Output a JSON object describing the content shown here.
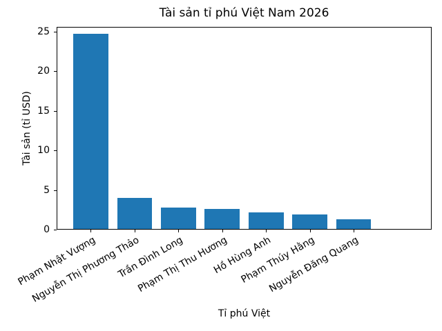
{
  "chart_data": {
    "type": "bar",
    "title": "Tài sản tỉ phú Việt Nam 2026",
    "xlabel": "Tỉ phú Việt",
    "ylabel": "Tài sản (tỉ USD)",
    "categories": [
      "Phạm Nhật Vượng",
      "Nguyễn Thị Phương Thảo",
      "Trần Đình Long",
      "Phạm Thị Thu Hương",
      "Hồ Hùng Anh",
      "Phạm Thúy Hằng",
      "Nguyễn Đăng Quang"
    ],
    "values": [
      24.6,
      3.9,
      2.7,
      2.5,
      2.1,
      1.8,
      1.2
    ],
    "yticks": [
      0,
      5,
      10,
      15,
      20,
      25
    ],
    "ylim": [
      0,
      25.6
    ],
    "grid": false,
    "legend": null,
    "bar_color": "#1f77b4",
    "axis_color": "#000000",
    "background_color": "#ffffff",
    "tick_label_rotation_deg": 30
  }
}
